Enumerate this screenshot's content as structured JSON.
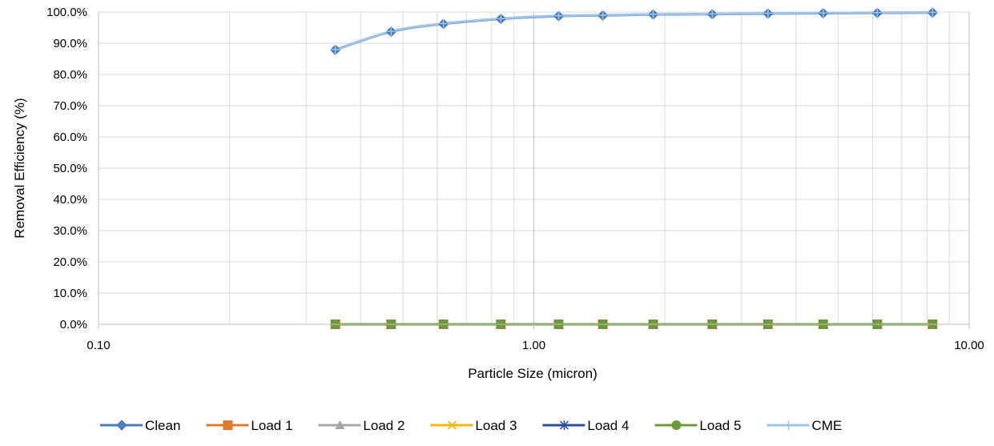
{
  "chart_data": {
    "type": "line",
    "xscale": "log",
    "xlim": [
      0.1,
      10
    ],
    "ylim": [
      0,
      1
    ],
    "grid": true,
    "legend_position": "bottom",
    "xlabel": "Particle Size (micron)",
    "ylabel": "Removal Efficiency (%)",
    "x_ticks": [
      0.1,
      1,
      10
    ],
    "x_tick_labels": [
      "0.10",
      "1.00",
      "10.00"
    ],
    "y_ticks": [
      0,
      0.1,
      0.2,
      0.3,
      0.4,
      0.5,
      0.6,
      0.7,
      0.8,
      0.9,
      1.0
    ],
    "y_tick_labels": [
      "0.0%",
      "10.0%",
      "20.0%",
      "30.0%",
      "40.0%",
      "50.0%",
      "60.0%",
      "70.0%",
      "80.0%",
      "90.0%",
      "100.0%"
    ],
    "x": [
      0.35,
      0.47,
      0.62,
      0.84,
      1.14,
      1.44,
      1.88,
      2.57,
      3.45,
      4.62,
      6.15,
      8.24
    ],
    "series": [
      {
        "name": "Clean",
        "color": "#4a7ebb",
        "marker": "diamond",
        "values": [
          0.879,
          0.937,
          0.962,
          0.978,
          0.987,
          0.989,
          0.992,
          0.993,
          0.995,
          0.996,
          0.997,
          0.998
        ]
      },
      {
        "name": "Load 1",
        "color": "#e07a2f",
        "marker": "square",
        "values": [
          0,
          0,
          0,
          0,
          0,
          0,
          0,
          0,
          0,
          0,
          0,
          0
        ]
      },
      {
        "name": "Load 2",
        "color": "#a5a5a5",
        "marker": "triangle",
        "values": [
          0,
          0,
          0,
          0,
          0,
          0,
          0,
          0,
          0,
          0,
          0,
          0
        ]
      },
      {
        "name": "Load 3",
        "color": "#f5b800",
        "marker": "x",
        "values": [
          0,
          0,
          0,
          0,
          0,
          0,
          0,
          0,
          0,
          0,
          0,
          0
        ]
      },
      {
        "name": "Load 4",
        "color": "#2e4e9e",
        "marker": "star",
        "values": [
          0,
          0,
          0,
          0,
          0,
          0,
          0,
          0,
          0,
          0,
          0,
          0
        ]
      },
      {
        "name": "Load 5",
        "color": "#6a9c3a",
        "marker": "circle",
        "values": [
          0,
          0,
          0,
          0,
          0,
          0,
          0,
          0,
          0,
          0,
          0,
          0
        ]
      },
      {
        "name": "CME",
        "color": "#9dc3e6",
        "marker": "plus",
        "values": [
          0.88,
          0.938,
          0.963,
          0.979,
          0.988,
          0.99,
          0.993,
          0.994,
          0.996,
          0.997,
          0.998,
          0.999
        ]
      }
    ]
  }
}
